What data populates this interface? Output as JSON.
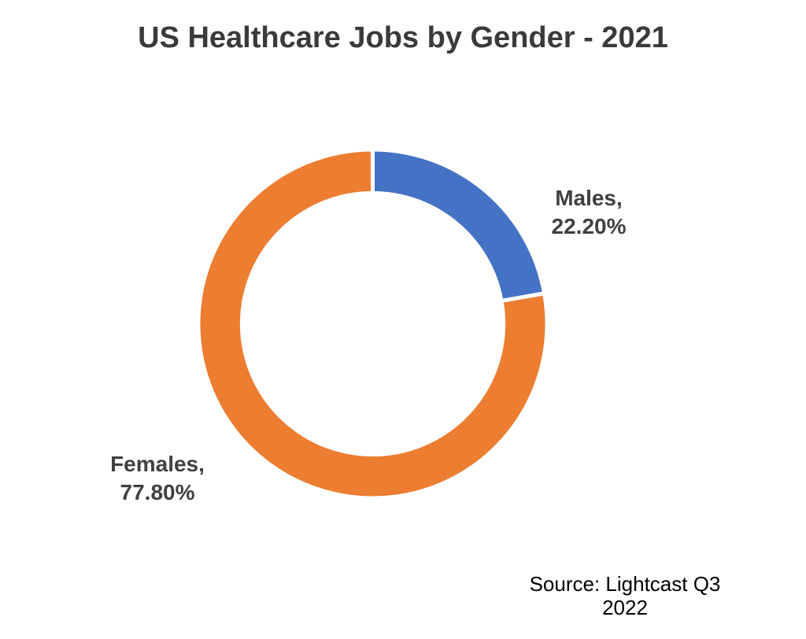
{
  "title": {
    "text": "US Healthcare Jobs by Gender - 2021",
    "color": "#3a3a3a"
  },
  "source_note": {
    "text": "Source: Lightcast Q3 2022",
    "color": "#000000"
  },
  "chart_data": {
    "type": "pie",
    "subtype": "donut",
    "title": "US Healthcare Jobs by Gender - 2021",
    "categories": [
      "Males",
      "Females"
    ],
    "values": [
      22.2,
      77.8
    ],
    "slice_colors": [
      "#4472C4",
      "#ED7D31"
    ],
    "labels": [
      {
        "category": "Males",
        "lines": [
          "Males,",
          "22.20%"
        ],
        "color": "#404040"
      },
      {
        "category": "Females",
        "lines": [
          "Females,",
          "77.80%"
        ],
        "color": "#404040"
      }
    ],
    "start_angle_deg": 0,
    "direction": "clockwise",
    "hole_ratio": 0.75,
    "border_color": "#ffffff",
    "legend": "none",
    "background": "#ffffff"
  }
}
